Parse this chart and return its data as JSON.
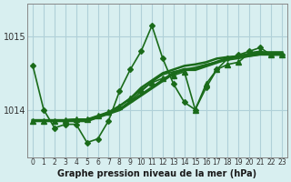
{
  "title": "Graphe pression niveau de la mer (hPa)",
  "bg_color": "#d8eff0",
  "grid_color": "#b0d0d8",
  "line_color": "#1a6b1a",
  "x_labels": [
    "0",
    "1",
    "2",
    "3",
    "4",
    "5",
    "6",
    "7",
    "8",
    "9",
    "10",
    "11",
    "12",
    "13",
    "14",
    "15",
    "16",
    "17",
    "18",
    "19",
    "20",
    "21",
    "22",
    "23"
  ],
  "yticks": [
    1014,
    1015
  ],
  "ylim": [
    1013.35,
    1015.45
  ],
  "xlim": [
    -0.5,
    23.5
  ],
  "series": [
    [
      1014.6,
      1014.0,
      1013.75,
      1013.8,
      1013.8,
      1013.55,
      1013.6,
      1013.85,
      1014.25,
      1014.55,
      1014.8,
      1015.15,
      1014.7,
      1014.35,
      1014.1,
      1014.0,
      1014.3,
      1014.55,
      1014.7,
      1014.75,
      1014.8,
      1014.85,
      1014.75,
      1014.75
    ],
    [
      1013.85,
      1013.85,
      1013.85,
      1013.85,
      1013.85,
      1013.85,
      1013.9,
      1013.95,
      1014.0,
      1014.1,
      1014.2,
      1014.3,
      1014.4,
      1014.5,
      1014.55,
      1014.55,
      1014.6,
      1014.65,
      1014.7,
      1014.73,
      1014.76,
      1014.78,
      1014.78,
      1014.78
    ],
    [
      1013.85,
      1013.85,
      1013.85,
      1013.85,
      1013.85,
      1013.85,
      1013.9,
      1013.96,
      1014.05,
      1014.15,
      1014.3,
      1014.4,
      1014.5,
      1014.55,
      1014.6,
      1014.62,
      1014.65,
      1014.7,
      1014.72,
      1014.73,
      1014.74,
      1014.76,
      1014.77,
      1014.77
    ],
    [
      1013.85,
      1013.85,
      1013.85,
      1013.86,
      1013.87,
      1013.87,
      1013.9,
      1013.95,
      1014.0,
      1014.12,
      1014.25,
      1014.38,
      1014.48,
      1014.52,
      1014.55,
      1014.58,
      1014.62,
      1014.65,
      1014.68,
      1014.7,
      1014.73,
      1014.75,
      1014.75,
      1014.75
    ],
    [
      1013.85,
      1013.85,
      1013.85,
      1013.86,
      1013.87,
      1013.87,
      1013.92,
      1013.97,
      1014.05,
      1014.16,
      1014.27,
      1014.37,
      1014.43,
      1014.47,
      1014.52,
      1014.0,
      1014.35,
      1014.55,
      1014.62,
      1014.65,
      1014.78,
      1014.8,
      1014.75,
      1014.75
    ]
  ],
  "line_widths": [
    1.2,
    2.5,
    1.8,
    1.2,
    1.2
  ],
  "markers": [
    "D",
    null,
    null,
    null,
    "^"
  ],
  "marker_sizes": [
    3,
    0,
    0,
    0,
    4
  ]
}
